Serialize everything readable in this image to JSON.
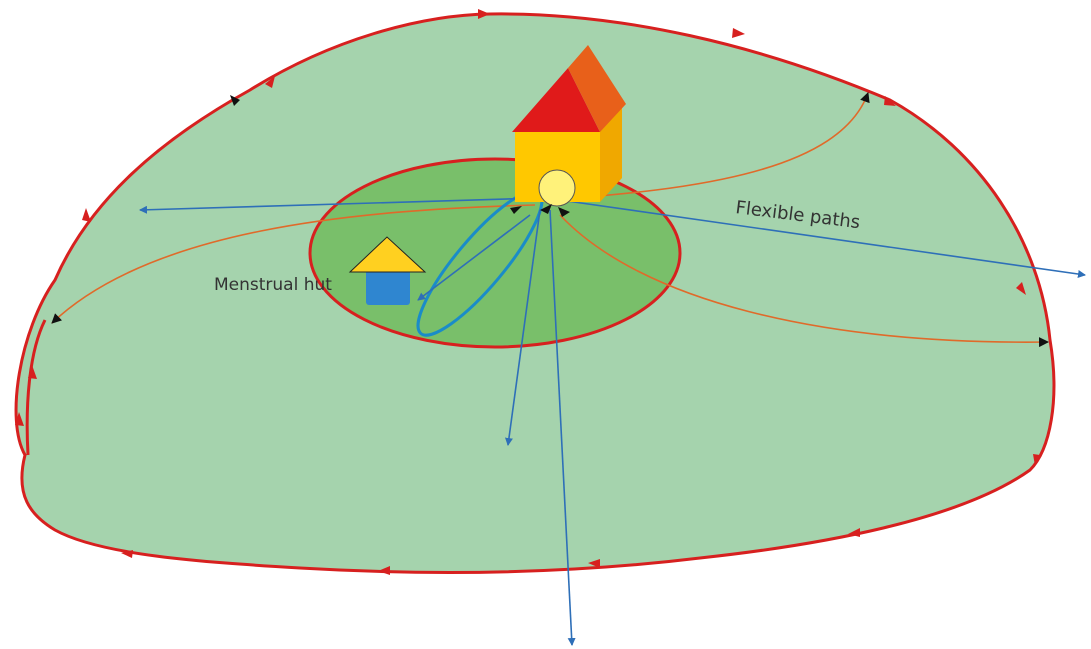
{
  "nodes": [
    {
      "label": "Menstrual hut"
    },
    {
      "label": "Flexible paths"
    }
  ]
}
